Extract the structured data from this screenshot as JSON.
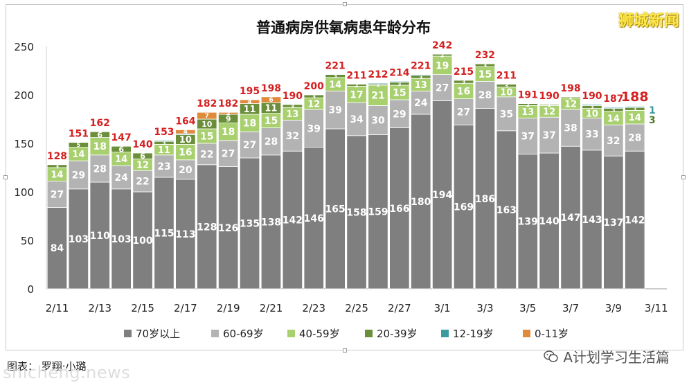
{
  "brand_text": "狮城新闻",
  "credit_text": "图表：  罗翔·小璐",
  "watermark_left": "shicheng.news",
  "watermark_right": "A计划学习生活篇",
  "icons": {
    "wechat": "wechat-icon"
  },
  "chart_data": {
    "type": "bar",
    "stacked": true,
    "title": "普通病房供氧病患年龄分布",
    "xlabel": "",
    "ylabel": "",
    "ylim": [
      0,
      250
    ],
    "yticks": [
      0,
      50,
      100,
      150,
      200,
      250
    ],
    "grid": false,
    "legend_position": "bottom",
    "categories": [
      "2/11",
      "2/12",
      "2/13",
      "2/14",
      "2/15",
      "2/16",
      "2/17",
      "2/18",
      "2/19",
      "2/20",
      "2/21",
      "2/22",
      "2/23",
      "2/24",
      "2/25",
      "2/26",
      "2/27",
      "2/28",
      "3/1",
      "3/2",
      "3/3",
      "3/4",
      "3/5",
      "3/6",
      "3/7",
      "3/8",
      "3/9",
      "3/10"
    ],
    "x_tick_labels": [
      "2/11",
      "2/13",
      "2/15",
      "2/17",
      "2/19",
      "2/21",
      "2/23",
      "2/25",
      "2/27",
      "3/1",
      "3/3",
      "3/5",
      "3/7",
      "3/9",
      "3/11"
    ],
    "totals": [
      128,
      151,
      162,
      147,
      140,
      153,
      164,
      182,
      182,
      195,
      198,
      190,
      200,
      221,
      211,
      212,
      214,
      221,
      242,
      215,
      232,
      211,
      191,
      190,
      198,
      190,
      187,
      188
    ],
    "series": [
      {
        "name": "70岁以上",
        "color": "#7f7f7f",
        "values": [
          84,
          103,
          110,
          103,
          100,
          115,
          113,
          128,
          126,
          135,
          138,
          142,
          146,
          165,
          158,
          159,
          166,
          180,
          194,
          169,
          186,
          163,
          139,
          140,
          147,
          143,
          137,
          142
        ]
      },
      {
        "name": "60-69岁",
        "color": "#b3b3b3",
        "values": [
          27,
          29,
          28,
          24,
          22,
          23,
          20,
          22,
          27,
          27,
          28,
          32,
          39,
          39,
          34,
          30,
          29,
          24,
          27,
          27,
          28,
          35,
          37,
          37,
          38,
          33,
          32,
          28
        ]
      },
      {
        "name": "40-59岁",
        "color": "#a9d06e",
        "values": [
          14,
          14,
          18,
          14,
          12,
          11,
          16,
          15,
          18,
          18,
          15,
          13,
          12,
          14,
          17,
          21,
          15,
          13,
          19,
          16,
          15,
          10,
          13,
          12,
          12,
          10,
          14,
          14
        ]
      },
      {
        "name": "20-39岁",
        "color": "#6b8e3a",
        "values": [
          3,
          5,
          6,
          6,
          6,
          3,
          10,
          10,
          9,
          11,
          11,
          3,
          3,
          3,
          2,
          1,
          3,
          3,
          2,
          3,
          3,
          3,
          2,
          1,
          1,
          3,
          3,
          3
        ]
      },
      {
        "name": "12-19岁",
        "color": "#3a9aa0",
        "values": [
          0,
          0,
          0,
          0,
          0,
          1,
          1,
          0,
          0,
          0,
          0,
          0,
          0,
          0,
          0,
          1,
          1,
          1,
          0,
          0,
          0,
          0,
          0,
          0,
          0,
          1,
          1,
          1
        ]
      },
      {
        "name": "0-11岁",
        "color": "#e08a3c",
        "values": [
          0,
          0,
          0,
          0,
          0,
          0,
          4,
          7,
          2,
          4,
          6,
          0,
          0,
          0,
          0,
          0,
          0,
          0,
          0,
          0,
          0,
          0,
          0,
          0,
          0,
          0,
          0,
          0
        ]
      }
    ]
  }
}
